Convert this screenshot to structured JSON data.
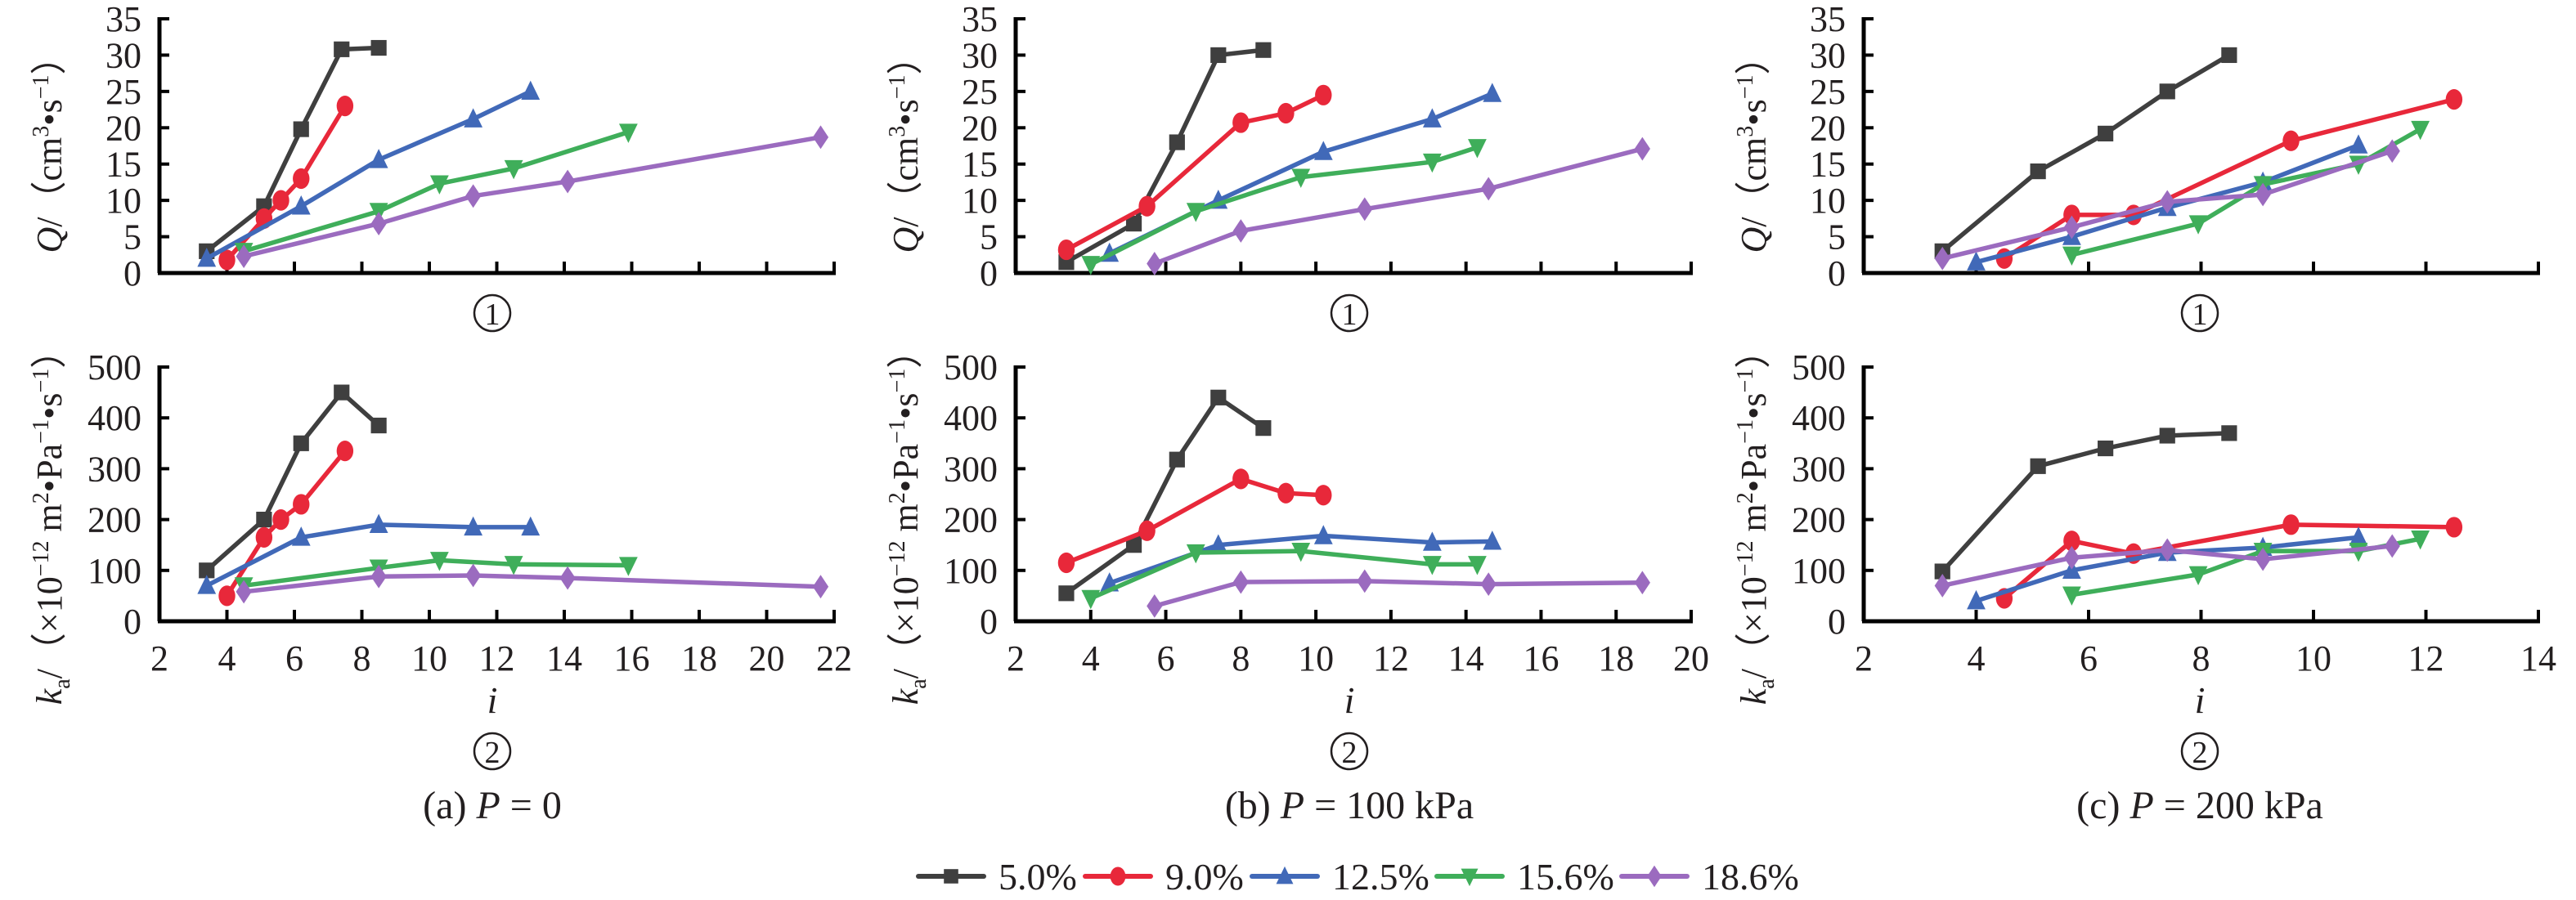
{
  "figure": {
    "legend": [
      {
        "label": "5.0%",
        "color": "#3f3f3f",
        "marker": "square"
      },
      {
        "label": "9.0%",
        "color": "#e8283a",
        "marker": "circle"
      },
      {
        "label": "12.5%",
        "color": "#4169b8",
        "marker": "triangle-up"
      },
      {
        "label": "15.6%",
        "color": "#3fae5a",
        "marker": "triangle-down"
      },
      {
        "label": "18.6%",
        "color": "#9b6bbf",
        "marker": "diamond"
      }
    ]
  },
  "chart_data": [
    {
      "type": "line",
      "panel": "a",
      "subplot": "①",
      "caption_prefix": "(a)",
      "caption_var": "P",
      "caption_value": "= 0",
      "xlabel": "i",
      "ylabel": "Q/（cm³•s⁻¹）",
      "xlim": [
        2,
        22
      ],
      "xticks": [
        2,
        4,
        6,
        8,
        10,
        12,
        14,
        16,
        18,
        20,
        22
      ],
      "ylim": [
        0,
        35
      ],
      "yticks": [
        0,
        5,
        10,
        15,
        20,
        25,
        30,
        35
      ],
      "series": [
        {
          "name": "5.0%",
          "x": [
            3.4,
            5.1,
            6.2,
            7.4,
            8.5
          ],
          "y": [
            3.0,
            9.2,
            19.8,
            30.8,
            31.0
          ]
        },
        {
          "name": "9.0%",
          "x": [
            4.0,
            5.1,
            5.6,
            6.2,
            7.5
          ],
          "y": [
            1.8,
            7.5,
            10.0,
            13.0,
            23.0
          ]
        },
        {
          "name": "12.5%",
          "x": [
            3.4,
            6.2,
            8.5,
            11.3,
            13.0
          ],
          "y": [
            2.0,
            9.2,
            15.6,
            21.2,
            25.0
          ]
        },
        {
          "name": "15.6%",
          "x": [
            4.5,
            8.5,
            10.3,
            12.5,
            15.9
          ],
          "y": [
            3.0,
            8.5,
            12.3,
            14.4,
            19.4
          ]
        },
        {
          "name": "18.6%",
          "x": [
            4.5,
            8.5,
            11.3,
            14.1,
            21.6
          ],
          "y": [
            2.3,
            6.8,
            10.6,
            12.6,
            18.7
          ]
        }
      ]
    },
    {
      "type": "line",
      "panel": "a",
      "subplot": "②",
      "xlabel": "i",
      "ylabel": "ka/（×10⁻¹² m²•Pa⁻¹•s⁻¹）",
      "xlim": [
        2,
        22
      ],
      "xticks": [
        2,
        4,
        6,
        8,
        10,
        12,
        14,
        16,
        18,
        20,
        22
      ],
      "ylim": [
        0,
        500
      ],
      "yticks": [
        0,
        100,
        200,
        300,
        400,
        500
      ],
      "series": [
        {
          "name": "5.0%",
          "x": [
            3.4,
            5.1,
            6.2,
            7.4,
            8.5
          ],
          "y": [
            100,
            200,
            350,
            450,
            385
          ]
        },
        {
          "name": "9.0%",
          "x": [
            4.0,
            5.1,
            5.6,
            6.2,
            7.5
          ],
          "y": [
            50,
            165,
            200,
            230,
            335
          ]
        },
        {
          "name": "12.5%",
          "x": [
            3.4,
            6.2,
            8.5,
            11.3,
            13.0
          ],
          "y": [
            70,
            165,
            190,
            185,
            185
          ]
        },
        {
          "name": "15.6%",
          "x": [
            4.5,
            8.5,
            10.3,
            12.5,
            15.9
          ],
          "y": [
            70,
            105,
            120,
            112,
            110
          ]
        },
        {
          "name": "18.6%",
          "x": [
            4.5,
            8.5,
            11.3,
            14.1,
            21.6
          ],
          "y": [
            58,
            88,
            90,
            85,
            68
          ]
        }
      ]
    },
    {
      "type": "line",
      "panel": "b",
      "subplot": "①",
      "caption_prefix": "(b)",
      "caption_var": "P",
      "caption_value": "= 100 kPa",
      "xlabel": "i",
      "ylabel": "Q/（cm³•s⁻¹）",
      "xlim": [
        2,
        20
      ],
      "xticks": [
        2,
        4,
        6,
        8,
        10,
        12,
        14,
        16,
        18,
        20
      ],
      "ylim": [
        0,
        35
      ],
      "yticks": [
        0,
        5,
        10,
        15,
        20,
        25,
        30,
        35
      ],
      "series": [
        {
          "name": "5.0%",
          "x": [
            3.35,
            5.15,
            6.3,
            7.4,
            8.6
          ],
          "y": [
            1.5,
            6.8,
            18.0,
            30.0,
            30.7
          ]
        },
        {
          "name": "9.0%",
          "x": [
            3.35,
            5.5,
            8.0,
            9.2,
            10.2
          ],
          "y": [
            3.2,
            9.2,
            20.7,
            22.0,
            24.5
          ]
        },
        {
          "name": "12.5%",
          "x": [
            4.5,
            7.4,
            10.2,
            13.1,
            14.7
          ],
          "y": [
            2.7,
            10.0,
            16.7,
            21.2,
            24.7
          ]
        },
        {
          "name": "15.6%",
          "x": [
            4.0,
            6.8,
            9.6,
            13.1,
            14.3
          ],
          "y": [
            1.2,
            8.5,
            13.2,
            15.3,
            17.3
          ]
        },
        {
          "name": "18.6%",
          "x": [
            5.7,
            8.0,
            11.3,
            14.6,
            18.7
          ],
          "y": [
            1.3,
            5.8,
            8.8,
            11.6,
            17.1
          ]
        }
      ]
    },
    {
      "type": "line",
      "panel": "b",
      "subplot": "②",
      "xlabel": "i",
      "ylabel": "ka/（×10⁻¹² m²•Pa⁻¹•s⁻¹）",
      "xlim": [
        2,
        20
      ],
      "xticks": [
        2,
        4,
        6,
        8,
        10,
        12,
        14,
        16,
        18,
        20
      ],
      "ylim": [
        0,
        500
      ],
      "yticks": [
        0,
        100,
        200,
        300,
        400,
        500
      ],
      "series": [
        {
          "name": "5.0%",
          "x": [
            3.35,
            5.15,
            6.3,
            7.4,
            8.6
          ],
          "y": [
            55,
            150,
            318,
            440,
            380
          ]
        },
        {
          "name": "9.0%",
          "x": [
            3.35,
            5.5,
            8.0,
            9.2,
            10.2
          ],
          "y": [
            115,
            178,
            280,
            252,
            248
          ]
        },
        {
          "name": "12.5%",
          "x": [
            4.5,
            7.4,
            10.2,
            13.1,
            14.7
          ],
          "y": [
            75,
            150,
            168,
            155,
            157
          ]
        },
        {
          "name": "15.6%",
          "x": [
            4.0,
            6.8,
            9.6,
            13.1,
            14.3
          ],
          "y": [
            45,
            135,
            138,
            112,
            112
          ]
        },
        {
          "name": "18.6%",
          "x": [
            5.7,
            8.0,
            11.3,
            14.6,
            18.7
          ],
          "y": [
            30,
            77,
            79,
            73,
            76
          ]
        }
      ]
    },
    {
      "type": "line",
      "panel": "c",
      "subplot": "①",
      "caption_prefix": "(c)",
      "caption_var": "P",
      "caption_value": "= 200 kPa",
      "xlabel": "i",
      "ylabel": "Q/（cm³•s⁻¹）",
      "xlim": [
        2,
        14
      ],
      "xticks": [
        2,
        4,
        6,
        8,
        10,
        12,
        14
      ],
      "ylim": [
        0,
        35
      ],
      "yticks": [
        0,
        5,
        10,
        15,
        20,
        25,
        30,
        35
      ],
      "series": [
        {
          "name": "5.0%",
          "x": [
            3.4,
            5.1,
            6.3,
            7.4,
            8.5
          ],
          "y": [
            3.0,
            14.0,
            19.2,
            25.0,
            30.0
          ]
        },
        {
          "name": "9.0%",
          "x": [
            4.5,
            5.7,
            6.8,
            9.6,
            12.5
          ],
          "y": [
            2.0,
            8.0,
            8.0,
            18.2,
            23.9
          ]
        },
        {
          "name": "12.5%",
          "x": [
            4.0,
            5.7,
            7.4,
            9.1,
            10.8
          ],
          "y": [
            1.5,
            5.0,
            9.0,
            12.5,
            17.6
          ]
        },
        {
          "name": "15.6%",
          "x": [
            5.7,
            7.95,
            9.1,
            10.8,
            11.9
          ],
          "y": [
            2.5,
            6.8,
            12.2,
            15.0,
            19.8
          ]
        },
        {
          "name": "18.6%",
          "x": [
            3.4,
            5.7,
            7.4,
            9.1,
            11.4
          ],
          "y": [
            2.0,
            6.3,
            9.8,
            10.8,
            16.8
          ]
        }
      ]
    },
    {
      "type": "line",
      "panel": "c",
      "subplot": "②",
      "xlabel": "i",
      "ylabel": "ka/（×10⁻¹² m²•Pa⁻¹•s⁻¹）",
      "xlim": [
        2,
        14
      ],
      "xticks": [
        2,
        4,
        6,
        8,
        10,
        12,
        14
      ],
      "ylim": [
        0,
        500
      ],
      "yticks": [
        0,
        100,
        200,
        300,
        400,
        500
      ],
      "series": [
        {
          "name": "5.0%",
          "x": [
            3.4,
            5.1,
            6.3,
            7.4,
            8.5
          ],
          "y": [
            98,
            305,
            340,
            365,
            370
          ]
        },
        {
          "name": "9.0%",
          "x": [
            4.5,
            5.7,
            6.8,
            9.6,
            12.5
          ],
          "y": [
            45,
            158,
            133,
            190,
            185
          ]
        },
        {
          "name": "12.5%",
          "x": [
            4.0,
            5.7,
            7.4,
            9.1,
            10.8
          ],
          "y": [
            40,
            100,
            135,
            145,
            165
          ]
        },
        {
          "name": "15.6%",
          "x": [
            5.7,
            7.95,
            9.1,
            10.8,
            11.9
          ],
          "y": [
            52,
            92,
            138,
            138,
            162
          ]
        },
        {
          "name": "18.6%",
          "x": [
            3.4,
            5.7,
            7.4,
            9.1,
            11.4
          ],
          "y": [
            70,
            125,
            140,
            122,
            148
          ]
        }
      ]
    }
  ]
}
